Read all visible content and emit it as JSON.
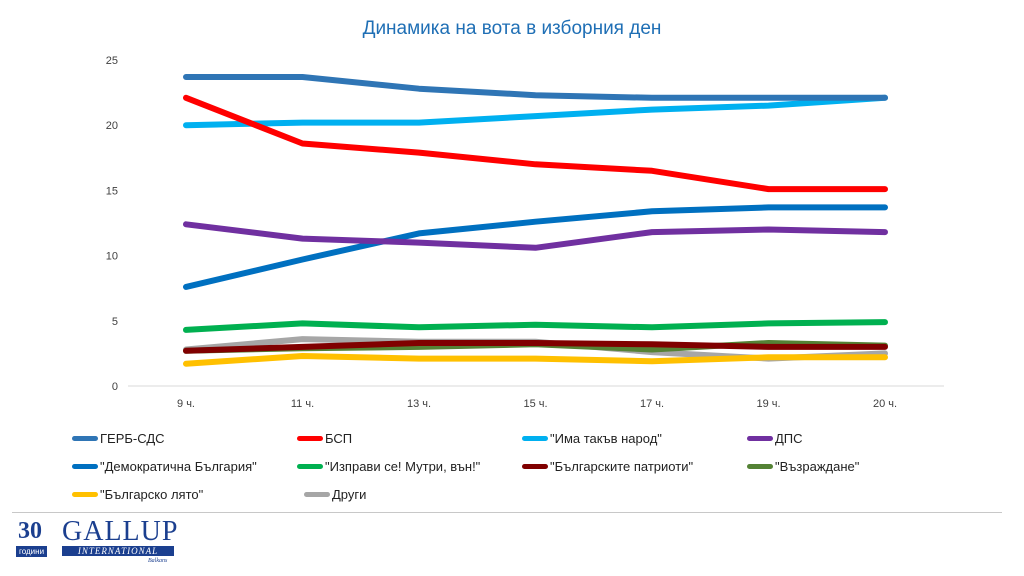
{
  "chart_data": {
    "type": "line",
    "title": "Динамика на вота в изборния ден",
    "categories": [
      "9 ч.",
      "11 ч.",
      "13 ч.",
      "15 ч.",
      "17 ч.",
      "19 ч.",
      "20 ч."
    ],
    "ylim": [
      0,
      25
    ],
    "yticks": [
      0,
      5,
      10,
      15,
      20,
      25
    ],
    "grid": false,
    "legend_position": "bottom",
    "series": [
      {
        "name": "ГЕРБ-СДС",
        "color": "#2f75b5",
        "values": [
          23.7,
          23.7,
          22.8,
          22.3,
          22.1,
          22.1,
          22.1
        ]
      },
      {
        "name": "БСП",
        "color": "#ff0000",
        "values": [
          22.1,
          18.6,
          17.9,
          17.0,
          16.5,
          15.1,
          15.1
        ]
      },
      {
        "name": "\"Има такъв народ\"",
        "color": "#00b0f0",
        "values": [
          20.0,
          20.2,
          20.2,
          20.7,
          21.2,
          21.5,
          22.1
        ]
      },
      {
        "name": "ДПС",
        "color": "#7030a0",
        "values": [
          12.4,
          11.3,
          11.0,
          10.6,
          11.8,
          12.0,
          11.8
        ]
      },
      {
        "name": "\"Демократична България\"",
        "color": "#0070c0",
        "values": [
          7.6,
          9.7,
          11.7,
          12.6,
          13.4,
          13.7,
          13.7
        ]
      },
      {
        "name": "\"Изправи се! Мутри, вън!\"",
        "color": "#00b050",
        "values": [
          4.3,
          4.8,
          4.5,
          4.7,
          4.5,
          4.8,
          4.9
        ]
      },
      {
        "name": "\"Българските патриоти\"",
        "color": "#800000",
        "values": [
          2.7,
          3.0,
          3.3,
          3.3,
          3.2,
          3.0,
          3.0
        ]
      },
      {
        "name": "\"Възраждане\"",
        "color": "#548235",
        "values": [
          2.7,
          2.9,
          3.0,
          3.2,
          2.8,
          3.3,
          3.1
        ]
      },
      {
        "name": "\"Българско лято\"",
        "color": "#ffc000",
        "values": [
          1.7,
          2.3,
          2.1,
          2.1,
          1.9,
          2.2,
          2.2
        ]
      },
      {
        "name": "Други",
        "color": "#a6a6a6",
        "values": [
          2.8,
          3.6,
          3.4,
          3.4,
          2.6,
          2.1,
          2.5
        ]
      }
    ]
  },
  "legend_rows": [
    [
      0,
      1,
      2,
      3
    ],
    [
      4,
      5,
      6,
      7
    ],
    [
      8,
      9
    ]
  ],
  "logo": {
    "number": "30",
    "years": "години",
    "brand": "GALLUP",
    "sub": "INTERNATIONAL",
    "region": "Balkans"
  }
}
